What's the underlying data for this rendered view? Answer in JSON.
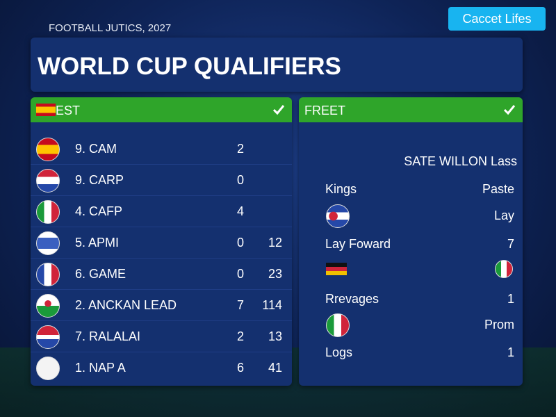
{
  "header": {
    "subtitle": "FOOTBALL JUTICS, 2027",
    "button": "Caccet Lifes",
    "title": "WORLD CUP QUALIFIERS"
  },
  "left_panel": {
    "title": "EST",
    "rows": [
      {
        "name": "9. CAM",
        "a": 2
      },
      {
        "name": "9. CARP",
        "a": 0
      },
      {
        "name": "4. CAFP",
        "a": 4
      },
      {
        "name": "5. APMI",
        "a": 0,
        "b": 12
      },
      {
        "name": "6. GAME",
        "a": 0,
        "b": 23
      },
      {
        "name": "2. ANCKAN LEAD",
        "a": 7,
        "b": 114
      },
      {
        "name": "7. RALALAI",
        "a": 2,
        "b": 13
      },
      {
        "name": "1. NAP A",
        "a": 6,
        "b": 41
      }
    ]
  },
  "right_panel": {
    "title": "FREET",
    "heading": "SATE WILLON Lass",
    "rows": [
      {
        "label": "Kings",
        "value": "Paste"
      },
      {
        "value": "Lay"
      },
      {
        "label": "Lay Foward",
        "value": 7
      },
      {
        "label": "Rrevages",
        "value": 1
      },
      {
        "value": "Prom"
      },
      {
        "label": "Logs",
        "value": 1
      }
    ]
  }
}
